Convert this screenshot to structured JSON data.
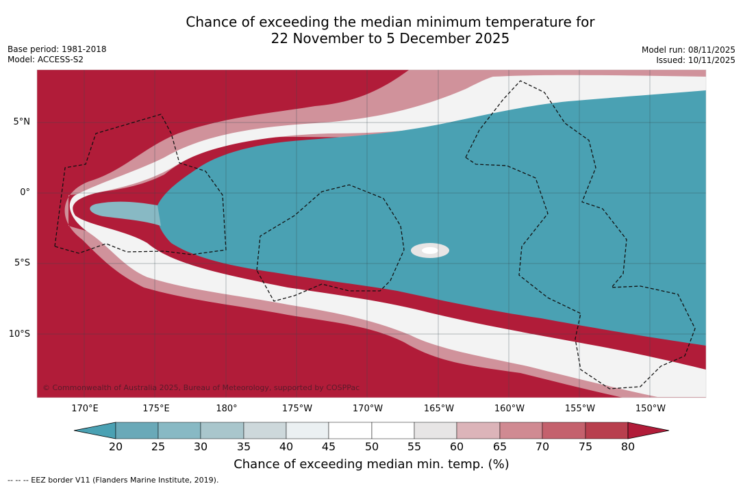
{
  "title_line1": "Chance of exceeding the median minimum temperature for",
  "title_line2": "22 November to 5 December 2025",
  "meta_left": [
    "Base period: 1981-2018",
    "Model: ACCESS-S2"
  ],
  "meta_right": [
    "Model run: 08/11/2025",
    "Issued: 10/11/2025"
  ],
  "lat_labels": [
    "5°N",
    "0°",
    "5°S",
    "10°S"
  ],
  "lon_labels": [
    "170°E",
    "175°E",
    "180°",
    "175°W",
    "170°W",
    "165°W",
    "160°W",
    "155°W",
    "150°W"
  ],
  "copyright": "© Commonwealth of Australia 2025, Bureau of Meteorology, supported by COSPPac",
  "colorbar": {
    "ticks": [
      "20",
      "25",
      "30",
      "35",
      "40",
      "45",
      "50",
      "55",
      "60",
      "65",
      "70",
      "75",
      "80"
    ],
    "colors": [
      "#4aa1b3",
      "#6aa9b8",
      "#88b9c4",
      "#a9c6cc",
      "#cdd8db",
      "#ebf0f2",
      "#ffffff",
      "#ffffff",
      "#e7e5e5",
      "#dcb4b9",
      "#d08a92",
      "#c4616d",
      "#b83f4e",
      "#b11c39"
    ],
    "title": "Chance of exceeding median min. temp. (%)"
  },
  "footer": "--  --  -- EEZ border V11 (Flanders Marine Institute, 2019)."
}
